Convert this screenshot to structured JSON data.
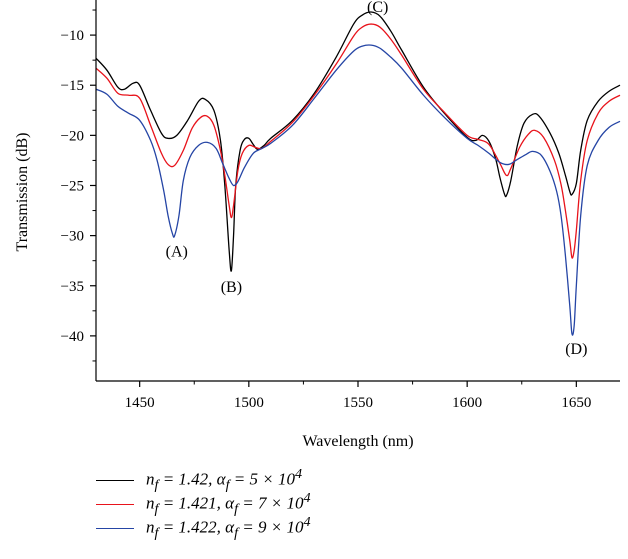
{
  "chart_data": {
    "type": "line",
    "xlabel": "Wavelength (nm)",
    "ylabel": "Transmission (dB)",
    "xlim": [
      1430,
      1670
    ],
    "ylim": [
      -44.5,
      -6.5
    ],
    "x_ticks": [
      1450,
      1500,
      1550,
      1600,
      1650
    ],
    "y_ticks": [
      -10,
      -15,
      -20,
      -25,
      -30,
      -35,
      -40
    ],
    "x_tick_labels": [
      "1450",
      "1500",
      "1550",
      "1600",
      "1650"
    ],
    "y_tick_labels": [
      "−10",
      "−15",
      "−20",
      "−25",
      "−30",
      "−35",
      "−40"
    ],
    "grid": false,
    "legend_position": "bottom",
    "annotations": [
      {
        "text": "(A)",
        "x": 1467,
        "y": -31.5
      },
      {
        "text": "(B)",
        "x": 1492,
        "y": -35.0
      },
      {
        "text": "(C)",
        "x": 1559,
        "y": -7.1
      },
      {
        "text": "(D)",
        "x": 1650,
        "y": -41.2
      }
    ],
    "series": [
      {
        "name": "n_f = 1.42, α_f = 5 × 10^4",
        "legend": {
          "n": "n",
          "f": "f",
          "alpha": "α",
          "n_value": "1.42",
          "exp_base": "5 × 10",
          "exp": "4"
        },
        "color": "#000000",
        "points": [
          [
            1430,
            -12.3
          ],
          [
            1435,
            -13.5
          ],
          [
            1440,
            -15.2
          ],
          [
            1443,
            -15.4
          ],
          [
            1447,
            -14.8
          ],
          [
            1450,
            -15.0
          ],
          [
            1455,
            -17.5
          ],
          [
            1460,
            -19.8
          ],
          [
            1463,
            -20.3
          ],
          [
            1467,
            -20.0
          ],
          [
            1472,
            -18.5
          ],
          [
            1477,
            -16.6
          ],
          [
            1480,
            -16.4
          ],
          [
            1484,
            -17.5
          ],
          [
            1487,
            -20.5
          ],
          [
            1489,
            -25.0
          ],
          [
            1491,
            -31.5
          ],
          [
            1492,
            -33.5
          ],
          [
            1493,
            -30.0
          ],
          [
            1494,
            -25.0
          ],
          [
            1496,
            -21.5
          ],
          [
            1498,
            -20.4
          ],
          [
            1500,
            -20.3
          ],
          [
            1502,
            -20.9
          ],
          [
            1504,
            -21.4
          ],
          [
            1507,
            -21.0
          ],
          [
            1510,
            -20.3
          ],
          [
            1520,
            -18.5
          ],
          [
            1530,
            -15.8
          ],
          [
            1540,
            -12.2
          ],
          [
            1548,
            -8.9
          ],
          [
            1552,
            -8.0
          ],
          [
            1556,
            -7.7
          ],
          [
            1560,
            -8.1
          ],
          [
            1565,
            -9.6
          ],
          [
            1570,
            -11.5
          ],
          [
            1580,
            -15.2
          ],
          [
            1590,
            -17.9
          ],
          [
            1600,
            -20.2
          ],
          [
            1604,
            -20.5
          ],
          [
            1607,
            -20.0
          ],
          [
            1610,
            -20.6
          ],
          [
            1613,
            -22.3
          ],
          [
            1615,
            -24.2
          ],
          [
            1617,
            -25.8
          ],
          [
            1618,
            -26.0
          ],
          [
            1620,
            -24.5
          ],
          [
            1623,
            -21.0
          ],
          [
            1626,
            -18.8
          ],
          [
            1630,
            -17.9
          ],
          [
            1633,
            -18.1
          ],
          [
            1638,
            -19.8
          ],
          [
            1642,
            -21.8
          ],
          [
            1645,
            -24.0
          ],
          [
            1647,
            -25.6
          ],
          [
            1648,
            -25.9
          ],
          [
            1650,
            -24.8
          ],
          [
            1652,
            -21.5
          ],
          [
            1655,
            -18.5
          ],
          [
            1660,
            -16.6
          ],
          [
            1665,
            -15.6
          ],
          [
            1670,
            -15.0
          ]
        ]
      },
      {
        "name": "n_f = 1.421, α_f = 7 × 10^4",
        "legend": {
          "n": "n",
          "f": "f",
          "alpha": "α",
          "n_value": "1.421",
          "exp_base": "7 × 10",
          "exp": "4"
        },
        "color": "#e8131b",
        "points": [
          [
            1430,
            -13.3
          ],
          [
            1435,
            -14.3
          ],
          [
            1440,
            -15.8
          ],
          [
            1445,
            -16.0
          ],
          [
            1450,
            -16.3
          ],
          [
            1455,
            -19.0
          ],
          [
            1460,
            -21.8
          ],
          [
            1463,
            -22.9
          ],
          [
            1466,
            -23.0
          ],
          [
            1470,
            -21.5
          ],
          [
            1474,
            -19.3
          ],
          [
            1478,
            -18.2
          ],
          [
            1481,
            -18.1
          ],
          [
            1484,
            -19.0
          ],
          [
            1487,
            -21.5
          ],
          [
            1489,
            -24.0
          ],
          [
            1491,
            -27.0
          ],
          [
            1492,
            -28.2
          ],
          [
            1493,
            -27.0
          ],
          [
            1495,
            -23.5
          ],
          [
            1497,
            -21.8
          ],
          [
            1500,
            -21.0
          ],
          [
            1503,
            -21.2
          ],
          [
            1506,
            -21.3
          ],
          [
            1510,
            -20.6
          ],
          [
            1520,
            -18.7
          ],
          [
            1530,
            -16.0
          ],
          [
            1540,
            -12.9
          ],
          [
            1548,
            -10.1
          ],
          [
            1552,
            -9.2
          ],
          [
            1556,
            -8.9
          ],
          [
            1560,
            -9.2
          ],
          [
            1565,
            -10.4
          ],
          [
            1570,
            -12.0
          ],
          [
            1580,
            -15.4
          ],
          [
            1590,
            -17.8
          ],
          [
            1600,
            -20.0
          ],
          [
            1605,
            -20.4
          ],
          [
            1610,
            -20.9
          ],
          [
            1615,
            -22.8
          ],
          [
            1618,
            -24.0
          ],
          [
            1620,
            -23.3
          ],
          [
            1624,
            -21.2
          ],
          [
            1628,
            -19.9
          ],
          [
            1631,
            -19.5
          ],
          [
            1635,
            -20.2
          ],
          [
            1640,
            -22.5
          ],
          [
            1643,
            -24.9
          ],
          [
            1645,
            -27.5
          ],
          [
            1647,
            -30.5
          ],
          [
            1648,
            -32.2
          ],
          [
            1649,
            -31.5
          ],
          [
            1650,
            -29.5
          ],
          [
            1652,
            -24.5
          ],
          [
            1655,
            -20.5
          ],
          [
            1660,
            -17.8
          ],
          [
            1665,
            -16.6
          ],
          [
            1670,
            -16.0
          ]
        ]
      },
      {
        "name": "n_f = 1.422, α_f = 9 × 10^4",
        "legend": {
          "n": "n",
          "f": "f",
          "alpha": "α",
          "n_value": "1.422",
          "exp_base": "9 × 10",
          "exp": "4"
        },
        "color": "#2545a5",
        "points": [
          [
            1430,
            -15.4
          ],
          [
            1435,
            -15.9
          ],
          [
            1440,
            -17.1
          ],
          [
            1445,
            -17.8
          ],
          [
            1450,
            -18.5
          ],
          [
            1455,
            -20.5
          ],
          [
            1458,
            -22.5
          ],
          [
            1461,
            -25.5
          ],
          [
            1463,
            -28.0
          ],
          [
            1465,
            -29.8
          ],
          [
            1466,
            -30.0
          ],
          [
            1468,
            -28.0
          ],
          [
            1470,
            -24.5
          ],
          [
            1473,
            -22.2
          ],
          [
            1477,
            -21.0
          ],
          [
            1481,
            -20.7
          ],
          [
            1485,
            -21.3
          ],
          [
            1488,
            -22.8
          ],
          [
            1491,
            -24.3
          ],
          [
            1493,
            -25.0
          ],
          [
            1495,
            -24.6
          ],
          [
            1498,
            -23.2
          ],
          [
            1502,
            -21.8
          ],
          [
            1506,
            -21.3
          ],
          [
            1510,
            -20.8
          ],
          [
            1520,
            -19.0
          ],
          [
            1530,
            -16.3
          ],
          [
            1540,
            -13.5
          ],
          [
            1548,
            -11.6
          ],
          [
            1552,
            -11.1
          ],
          [
            1556,
            -11.0
          ],
          [
            1560,
            -11.3
          ],
          [
            1565,
            -12.2
          ],
          [
            1570,
            -13.3
          ],
          [
            1580,
            -16.0
          ],
          [
            1590,
            -18.3
          ],
          [
            1600,
            -20.3
          ],
          [
            1605,
            -21.0
          ],
          [
            1610,
            -21.8
          ],
          [
            1615,
            -22.7
          ],
          [
            1619,
            -22.9
          ],
          [
            1623,
            -22.4
          ],
          [
            1627,
            -21.9
          ],
          [
            1630,
            -21.6
          ],
          [
            1634,
            -22.0
          ],
          [
            1638,
            -23.6
          ],
          [
            1641,
            -25.6
          ],
          [
            1643,
            -28.0
          ],
          [
            1645,
            -32.0
          ],
          [
            1647,
            -37.0
          ],
          [
            1648,
            -39.8
          ],
          [
            1649,
            -39.0
          ],
          [
            1650,
            -35.0
          ],
          [
            1652,
            -28.0
          ],
          [
            1655,
            -23.0
          ],
          [
            1660,
            -20.5
          ],
          [
            1665,
            -19.2
          ],
          [
            1670,
            -18.6
          ]
        ]
      }
    ]
  }
}
